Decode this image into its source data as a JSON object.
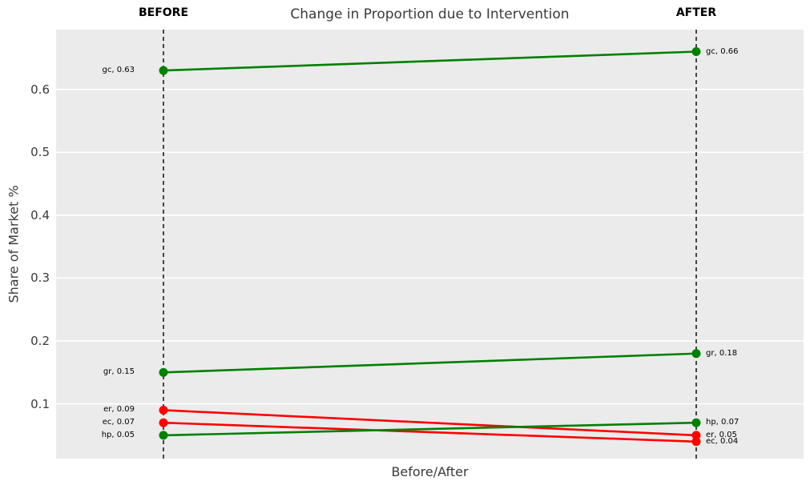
{
  "chart_data": {
    "type": "line",
    "subtype": "slope",
    "title": "Change in Proportion due to Intervention",
    "xlabel": "Before/After",
    "ylabel": "Share of Market %",
    "annotations": {
      "before": "BEFORE",
      "after": "AFTER"
    },
    "categories": [
      "BEFORE",
      "AFTER"
    ],
    "series": [
      {
        "name": "gc",
        "values": [
          0.63,
          0.66
        ],
        "color": "#008000",
        "point_labels": [
          "gc, 0.63",
          "gc, 0.66"
        ]
      },
      {
        "name": "gr",
        "values": [
          0.15,
          0.18
        ],
        "color": "#008000",
        "point_labels": [
          "gr, 0.15",
          "gr, 0.18"
        ]
      },
      {
        "name": "er",
        "values": [
          0.09,
          0.05
        ],
        "color": "#ff0000",
        "point_labels": [
          "er, 0.09",
          "er, 0.05"
        ]
      },
      {
        "name": "ec",
        "values": [
          0.07,
          0.04
        ],
        "color": "#ff0000",
        "point_labels": [
          "ec, 0.07",
          "ec, 0.04"
        ]
      },
      {
        "name": "hp",
        "values": [
          0.05,
          0.07
        ],
        "color": "#008000",
        "point_labels": [
          "hp, 0.05",
          "hp, 0.07"
        ]
      }
    ],
    "yticks": [
      0.1,
      0.2,
      0.3,
      0.4,
      0.5,
      0.6
    ],
    "ylim": [
      0.013,
      0.695
    ],
    "grid": true,
    "legend": false,
    "colors": {
      "increase": "#008000",
      "decrease": "#ff0000",
      "plot_background": "#ebebeb",
      "gridline": "#ffffff",
      "guide_line": "#000000"
    }
  }
}
